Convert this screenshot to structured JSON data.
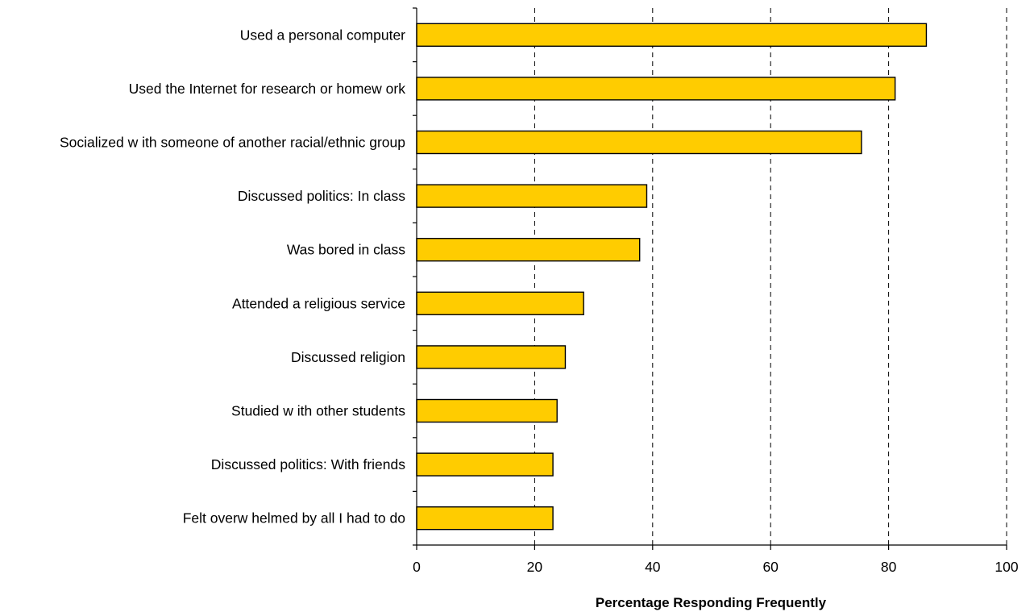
{
  "chart_data": {
    "type": "bar",
    "orientation": "horizontal",
    "categories": [
      "Used a personal computer",
      "Used the Internet for research or homew ork",
      "Socialized w ith someone of another racial/ethnic group",
      "Discussed politics: In class",
      "Was bored in class",
      "Attended a religious service",
      "Discussed religion",
      "Studied w ith other students",
      "Discussed politics: With friends",
      "Felt overw helmed by all I had to do"
    ],
    "values": [
      86.4,
      81.1,
      75.4,
      39.0,
      37.8,
      28.3,
      25.2,
      23.8,
      23.1,
      23.1
    ],
    "title": "",
    "xlabel": "Percentage Responding Frequently",
    "ylabel": "",
    "xlim": [
      0,
      100
    ],
    "xticks": [
      "0",
      "20",
      "40",
      "60",
      "80",
      "100"
    ],
    "xtick_values": [
      0,
      20,
      40,
      60,
      80,
      100
    ],
    "grid": "vertical dashed",
    "legend": "none",
    "bar_color": "#FFCC00",
    "bar_border_color": "#000000"
  }
}
